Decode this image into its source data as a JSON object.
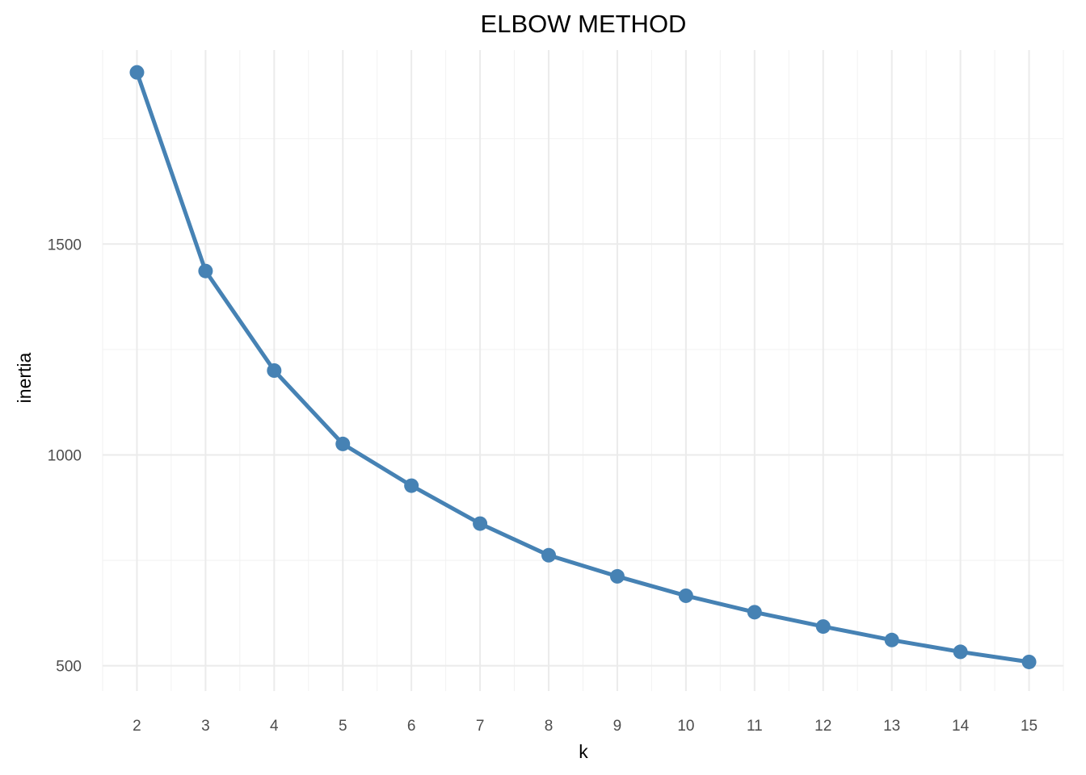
{
  "chart_data": {
    "type": "line",
    "title": "ELBOW METHOD",
    "xlabel": "k",
    "ylabel": "inertia",
    "x": [
      2,
      3,
      4,
      5,
      6,
      7,
      8,
      9,
      10,
      11,
      12,
      13,
      14,
      15
    ],
    "series": [
      {
        "name": "",
        "values": [
          1907,
          1436,
          1200,
          1026,
          927,
          837,
          762,
          712,
          666,
          627,
          593,
          561,
          533,
          509
        ]
      }
    ],
    "xticks": [
      2,
      3,
      4,
      5,
      6,
      7,
      8,
      9,
      10,
      11,
      12,
      13,
      14,
      15
    ],
    "yticks": [
      500,
      1000,
      1500
    ],
    "xlim": [
      1.5,
      15.5
    ],
    "ylim": [
      440,
      1960
    ],
    "grid": true,
    "markers": true,
    "color": "#4682B4"
  }
}
